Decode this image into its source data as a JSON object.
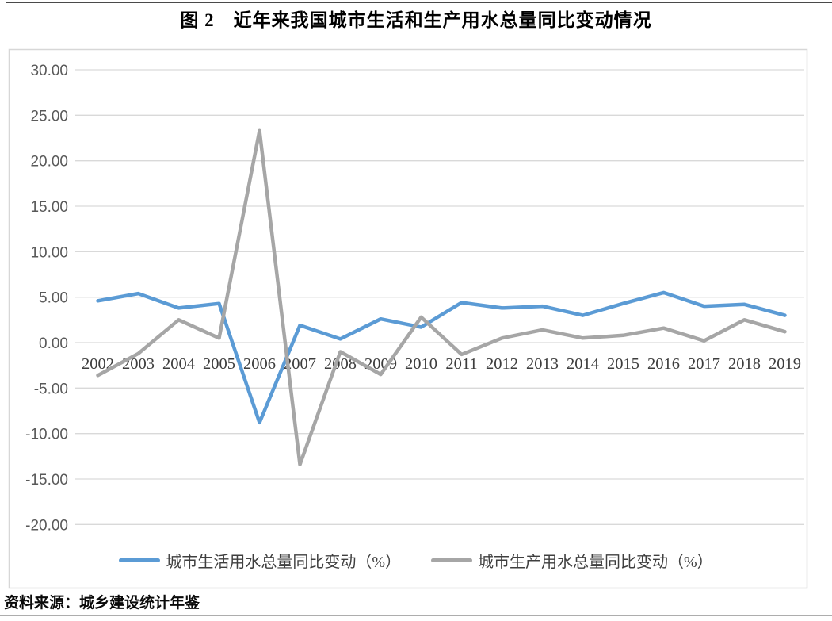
{
  "page": {
    "title": "图 2　近年来我国城市生活和生产用水总量同比变动情况",
    "source_note": "资料来源：城乡建设统计年鉴"
  },
  "chart_data": {
    "type": "line",
    "title": "图 2　近年来我国城市生活和生产用水总量同比变动情况",
    "categories": [
      "2002",
      "2003",
      "2004",
      "2005",
      "2006",
      "2007",
      "2008",
      "2009",
      "2010",
      "2011",
      "2012",
      "2013",
      "2014",
      "2015",
      "2016",
      "2017",
      "2018",
      "2019"
    ],
    "series": [
      {
        "name": "城市生活用水总量同比变动（%）",
        "color": "#5B9BD5",
        "values": [
          4.6,
          5.4,
          3.8,
          4.3,
          -8.8,
          1.9,
          0.4,
          2.6,
          1.7,
          4.4,
          3.8,
          4.0,
          3.0,
          4.3,
          5.5,
          4.0,
          4.2,
          3.0
        ]
      },
      {
        "name": "城市生产用水总量同比变动（%）",
        "color": "#A6A6A6",
        "values": [
          -3.6,
          -1.2,
          2.5,
          0.5,
          23.3,
          -13.4,
          -1.0,
          -3.5,
          2.8,
          -1.3,
          0.5,
          1.4,
          0.5,
          0.8,
          1.6,
          0.2,
          2.5,
          1.2
        ]
      }
    ],
    "xlabel": "",
    "ylabel": "",
    "ylim": [
      -20,
      30
    ],
    "y_tick_values": [
      30,
      25,
      20,
      15,
      10,
      5,
      0,
      -5,
      -10,
      -15,
      -20
    ],
    "y_tick_labels": [
      "30.00",
      "25.00",
      "20.00",
      "15.00",
      "10.00",
      "5.00",
      "0.00",
      "-5.00",
      "-10.00",
      "-15.00",
      "-20.00"
    ],
    "grid": true,
    "legend_position": "bottom",
    "gridline_color": "#D9D9D9",
    "chart_border_color": "#D7D7D7",
    "y_axis_label_color": "#595959",
    "x_axis_label_color": "#3d3d3d"
  }
}
